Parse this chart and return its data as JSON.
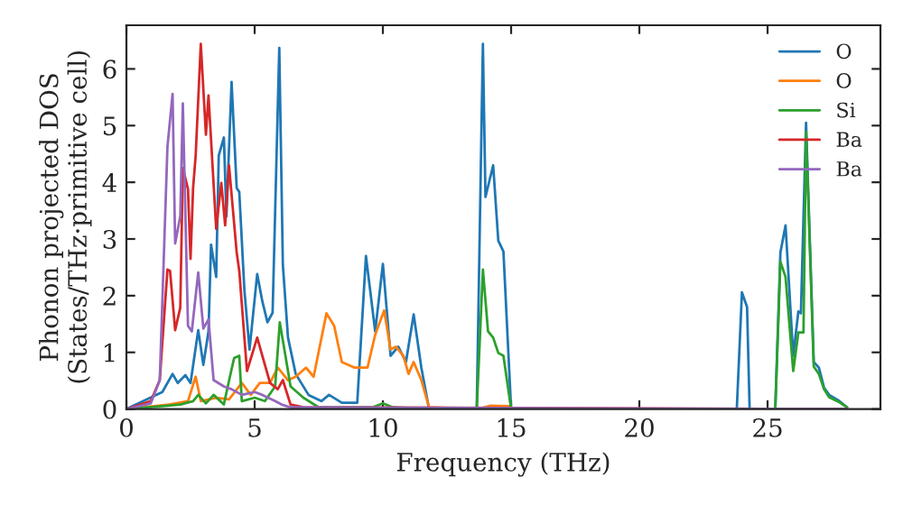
{
  "chart_data": {
    "type": "line",
    "xlabel": "Frequency (THz)",
    "ylabel": "Phonon projected DOS\n(States/THz·primitive cell)",
    "xlim": [
      0,
      29.4
    ],
    "xticks": [
      0,
      5,
      10,
      15,
      20,
      25
    ],
    "ylim": [
      0,
      6.77
    ],
    "yticks": [
      0,
      1,
      2,
      3,
      4,
      5,
      6
    ],
    "grid": false,
    "legend": "top right",
    "line_style": "solid",
    "marker": "none",
    "series": [
      {
        "name": "O",
        "color": "#1f77b4",
        "x": [
          0,
          1.4,
          1.8,
          2.0,
          2.3,
          2.5,
          2.8,
          3.0,
          3.2,
          3.3,
          3.5,
          3.6,
          3.8,
          3.9,
          4.1,
          4.3,
          4.4,
          4.6,
          4.8,
          5.1,
          5.3,
          5.5,
          5.7,
          5.96,
          6.1,
          6.3,
          6.6,
          7.1,
          7.6,
          7.9,
          8.4,
          9.0,
          9.34,
          9.7,
          10.0,
          10.3,
          10.6,
          10.9,
          11.2,
          11.5,
          11.8,
          13.66,
          13.9,
          14.0,
          14.3,
          14.5,
          14.7,
          15.0,
          23.8,
          24.0,
          24.2,
          24.3,
          25.3,
          25.5,
          25.7,
          26.0,
          26.2,
          26.3,
          26.5,
          26.8,
          27.0,
          27.2,
          27.4,
          27.8,
          28.1
        ],
        "values": [
          0,
          0.3,
          0.62,
          0.46,
          0.6,
          0.46,
          1.39,
          0.78,
          1.37,
          2.9,
          2.33,
          4.47,
          4.79,
          3.4,
          5.77,
          3.9,
          3.83,
          2.1,
          1.05,
          2.38,
          1.9,
          1.53,
          1.7,
          6.37,
          2.54,
          1.26,
          0.62,
          0.25,
          0.14,
          0.25,
          0.11,
          0.11,
          2.7,
          1.37,
          2.56,
          0.94,
          1.1,
          0.83,
          1.67,
          0.73,
          0,
          0,
          6.44,
          3.74,
          4.3,
          2.97,
          2.78,
          0,
          0,
          2.06,
          1.8,
          0,
          0,
          2.76,
          3.24,
          0.94,
          1.72,
          1.69,
          5.05,
          0.83,
          0.73,
          0.38,
          0.25,
          0.14,
          0.03
        ]
      },
      {
        "name": "O",
        "color": "#ff7f0e",
        "x": [
          0,
          1.65,
          2.4,
          2.7,
          2.9,
          3.5,
          4.0,
          4.5,
          4.85,
          5.2,
          5.6,
          5.9,
          6.3,
          6.6,
          7.0,
          7.3,
          7.8,
          8.1,
          8.4,
          8.9,
          9.4,
          9.7,
          10.05,
          10.3,
          10.5,
          10.8,
          11.0,
          11.2,
          11.5,
          11.8,
          13.7,
          14.2,
          14.9,
          15.0,
          28.1
        ],
        "values": [
          0,
          0.08,
          0.14,
          0.57,
          0.14,
          0.2,
          0.17,
          0.46,
          0.25,
          0.46,
          0.46,
          0.73,
          0.51,
          0.57,
          0.73,
          0.57,
          1.69,
          1.47,
          0.83,
          0.73,
          0.73,
          1.31,
          1.74,
          1.05,
          1.1,
          0.94,
          0.62,
          0.83,
          0.51,
          0.03,
          0,
          0.06,
          0.05,
          0,
          0
        ]
      },
      {
        "name": "Si",
        "color": "#2ca02c",
        "x": [
          0,
          1.4,
          2.1,
          2.6,
          2.8,
          3.1,
          3.4,
          3.8,
          4.0,
          4.2,
          4.4,
          4.5,
          5.0,
          5.4,
          5.8,
          5.98,
          6.2,
          6.4,
          6.9,
          7.5,
          9.6,
          10.0,
          10.4,
          11.8,
          13.66,
          13.9,
          14.1,
          14.3,
          14.5,
          14.7,
          15.0,
          25.3,
          25.5,
          25.7,
          26.0,
          26.2,
          26.4,
          26.5,
          26.8,
          27.0,
          27.2,
          27.4,
          27.8,
          28.1
        ],
        "values": [
          0,
          0.05,
          0.08,
          0.14,
          0.25,
          0.1,
          0.25,
          0.08,
          0.5,
          0.9,
          0.94,
          0.14,
          0.2,
          0.14,
          0.4,
          1.53,
          0.94,
          0.4,
          0.2,
          0.03,
          0.03,
          0.1,
          0.03,
          0,
          0,
          2.46,
          1.37,
          1.26,
          0.99,
          0.94,
          0,
          0,
          2.6,
          2.33,
          0.67,
          1.35,
          1.35,
          4.89,
          0.75,
          0.62,
          0.35,
          0.21,
          0.12,
          0.03
        ]
      },
      {
        "name": "Ba",
        "color": "#d62728",
        "x": [
          0,
          0.95,
          1.3,
          1.6,
          1.7,
          1.9,
          2.1,
          2.2,
          2.4,
          2.5,
          2.6,
          2.7,
          2.9,
          3.1,
          3.2,
          3.5,
          3.7,
          3.85,
          4.0,
          4.3,
          4.4,
          4.7,
          5.1,
          5.3,
          5.6,
          5.9,
          6.1,
          6.4,
          6.9,
          28.1
        ],
        "values": [
          0,
          0.14,
          0.51,
          2.46,
          2.44,
          1.39,
          1.79,
          4.25,
          3.88,
          2.65,
          3.9,
          4.47,
          6.44,
          4.84,
          5.53,
          3.18,
          3.99,
          3.24,
          4.3,
          2.76,
          2.44,
          0.67,
          1.26,
          0.94,
          0.46,
          0.35,
          0.51,
          0.08,
          0.03,
          0
        ]
      },
      {
        "name": "Ba",
        "color": "#9467bd",
        "x": [
          0,
          0.95,
          1.3,
          1.6,
          1.8,
          1.9,
          2.1,
          2.2,
          2.4,
          2.55,
          2.8,
          3.0,
          3.2,
          3.4,
          3.8,
          4.1,
          4.5,
          5.0,
          5.3,
          5.8,
          6.05,
          6.4,
          28.1
        ],
        "values": [
          0,
          0.1,
          0.51,
          4.63,
          5.56,
          2.92,
          3.4,
          5.39,
          1.47,
          1.37,
          2.41,
          1.42,
          1.58,
          0.51,
          0.4,
          0.35,
          0.25,
          0.3,
          0.25,
          0.14,
          0.08,
          0.03,
          0
        ]
      }
    ]
  }
}
